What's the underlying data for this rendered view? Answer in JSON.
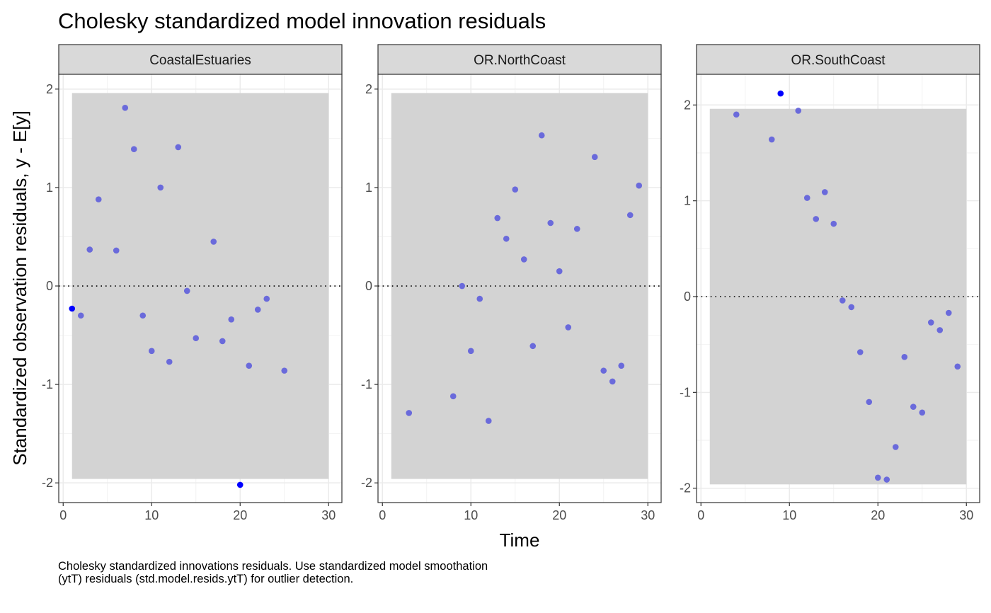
{
  "chart_data": {
    "type": "scatter",
    "title": "Cholesky standardized model innovation residuals",
    "xlabel": "Time",
    "ylabel": "Standardized observation residuals, y - E[y]",
    "caption": "Cholesky standardized innovations residuals. Use standardized model smoothation (ytT) residuals (std.model.resids.ytT) for outlier detection.",
    "xlim": [
      -0.5,
      31.5
    ],
    "x_ticks": [
      "0",
      "10",
      "20",
      "30"
    ],
    "band": {
      "xmin": 1,
      "xmax": 30,
      "ymin": -1.96,
      "ymax": 1.96
    },
    "reference_line": 0,
    "colors": {
      "point": "#6a6adb",
      "outlier": "#0000ff",
      "band": "#d3d3d3",
      "strip": "#d9d9d9"
    },
    "panels": [
      {
        "name": "CoastalEstuaries",
        "ylim": [
          -2.2,
          2.15
        ],
        "y_ticks": [
          "-2",
          "-1",
          "0",
          "1",
          "2"
        ],
        "points": [
          [
            2,
            -0.3
          ],
          [
            3,
            0.37
          ],
          [
            4,
            0.88
          ],
          [
            6,
            0.36
          ],
          [
            7,
            1.81
          ],
          [
            8,
            1.39
          ],
          [
            9,
            -0.3
          ],
          [
            10,
            -0.66
          ],
          [
            11,
            1.0
          ],
          [
            12,
            -0.77
          ],
          [
            13,
            1.41
          ],
          [
            14,
            -0.05
          ],
          [
            15,
            -0.53
          ],
          [
            17,
            0.45
          ],
          [
            18,
            -0.56
          ],
          [
            19,
            -0.34
          ],
          [
            21,
            -0.81
          ],
          [
            22,
            -0.24
          ],
          [
            23,
            -0.13
          ],
          [
            25,
            -0.86
          ]
        ],
        "outliers": [
          [
            1,
            -0.23
          ],
          [
            20,
            -2.02
          ]
        ]
      },
      {
        "name": "OR.NorthCoast",
        "ylim": [
          -2.2,
          2.15
        ],
        "y_ticks": [
          "-2",
          "-1",
          "0",
          "1",
          "2"
        ],
        "points": [
          [
            3,
            -1.29
          ],
          [
            8,
            -1.12
          ],
          [
            9,
            0.0
          ],
          [
            10,
            -0.66
          ],
          [
            11,
            -0.13
          ],
          [
            12,
            -1.37
          ],
          [
            13,
            0.69
          ],
          [
            14,
            0.48
          ],
          [
            15,
            0.98
          ],
          [
            16,
            0.27
          ],
          [
            17,
            -0.61
          ],
          [
            18,
            1.53
          ],
          [
            19,
            0.64
          ],
          [
            20,
            0.15
          ],
          [
            21,
            -0.42
          ],
          [
            22,
            0.58
          ],
          [
            24,
            1.31
          ],
          [
            25,
            -0.86
          ],
          [
            26,
            -0.97
          ],
          [
            27,
            -0.81
          ],
          [
            28,
            0.72
          ],
          [
            29,
            1.02
          ]
        ],
        "outliers": []
      },
      {
        "name": "OR.SouthCoast",
        "ylim": [
          -2.15,
          2.32
        ],
        "y_ticks": [
          "-2",
          "-1",
          "0",
          "1",
          "2"
        ],
        "points": [
          [
            4,
            1.9
          ],
          [
            8,
            1.64
          ],
          [
            11,
            1.94
          ],
          [
            12,
            1.03
          ],
          [
            13,
            0.81
          ],
          [
            14,
            1.09
          ],
          [
            15,
            0.76
          ],
          [
            16,
            -0.04
          ],
          [
            17,
            -0.11
          ],
          [
            18,
            -0.58
          ],
          [
            19,
            -1.1
          ],
          [
            20,
            -1.89
          ],
          [
            21,
            -1.91
          ],
          [
            22,
            -1.57
          ],
          [
            23,
            -0.63
          ],
          [
            24,
            -1.15
          ],
          [
            25,
            -1.21
          ],
          [
            26,
            -0.27
          ],
          [
            27,
            -0.35
          ],
          [
            28,
            -0.17
          ],
          [
            29,
            -0.73
          ]
        ],
        "outliers": [
          [
            9,
            2.12
          ]
        ]
      }
    ]
  }
}
